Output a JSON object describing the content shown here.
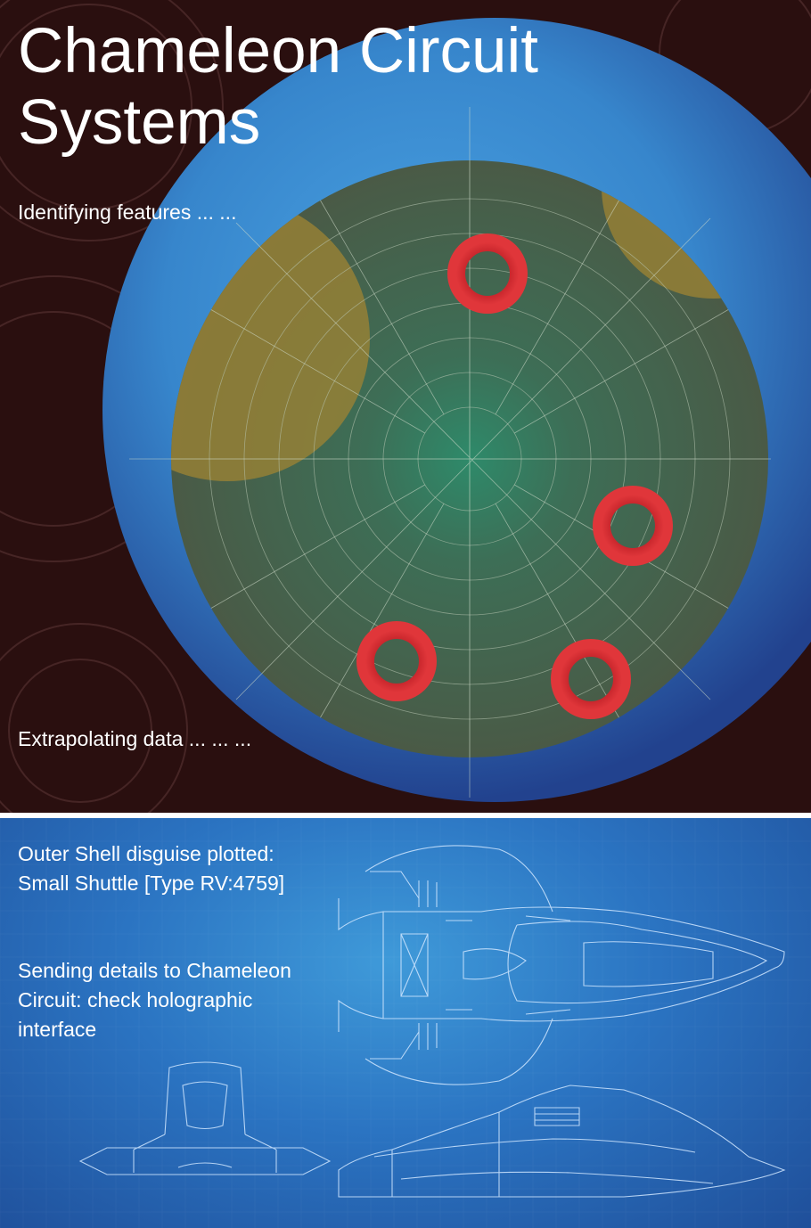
{
  "header": {
    "title_line1": "Chameleon Circuit",
    "title_line2": "Systems"
  },
  "scan": {
    "status_identifying": "Identifying features ... ...",
    "status_extrapolating": "Extrapolating data ... ... ..."
  },
  "blueprint": {
    "disguise_line1": "Outer Shell disguise plotted:",
    "disguise_line2": "Small Shuttle [Type RV:4759]",
    "sending_line1": "Sending details to Chameleon",
    "sending_line2": "Circuit: check holographic",
    "sending_line3": "interface"
  },
  "colors": {
    "background": "#2a0f0f",
    "outer_disc": "#3a8fd4",
    "radar_disc": "#4a5a46",
    "radar_center": "#2e8a6a",
    "overlap_zone": "#8a7a36",
    "target_ring": "#d42a2a",
    "blueprint_blue": "#2b74c2",
    "blueprint_line": "#cfe6ff"
  }
}
